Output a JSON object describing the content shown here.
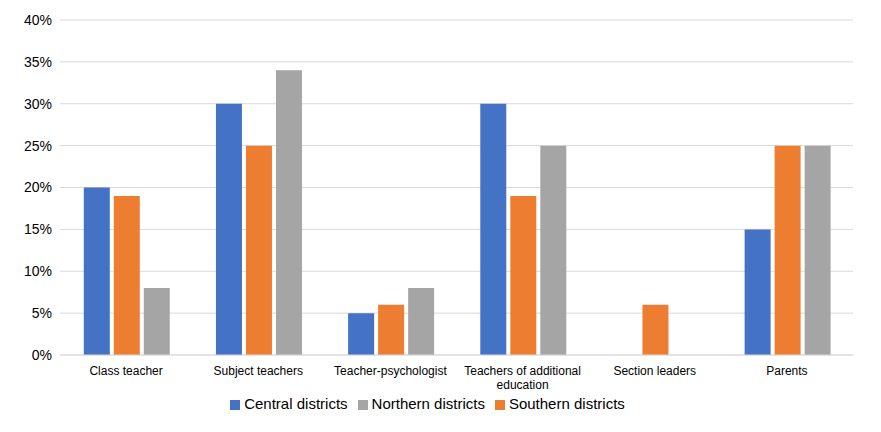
{
  "chart_data": {
    "type": "bar",
    "categories": [
      "Class teacher",
      "Subject teachers",
      "Teacher-psychologist",
      "Teachers of additional education",
      "Section leaders",
      "Parents"
    ],
    "series": [
      {
        "name": "Central districts",
        "color": "#4472c4",
        "values": [
          20,
          30,
          5,
          30,
          0,
          15
        ]
      },
      {
        "name": "Southern districts",
        "color": "#ed7d31",
        "values": [
          19,
          25,
          6,
          19,
          6,
          25
        ]
      },
      {
        "name": "Northern districts",
        "color": "#a5a5a5",
        "values": [
          8,
          34,
          8,
          25,
          0,
          25
        ]
      }
    ],
    "ylim": [
      0,
      40
    ],
    "yticks": [
      {
        "value": 0,
        "label": "0%"
      },
      {
        "value": 5,
        "label": "5%"
      },
      {
        "value": 10,
        "label": "10%"
      },
      {
        "value": 15,
        "label": "15%"
      },
      {
        "value": 20,
        "label": "20%"
      },
      {
        "value": 25,
        "label": "25%"
      },
      {
        "value": 30,
        "label": "30%"
      },
      {
        "value": 35,
        "label": "35%"
      },
      {
        "value": 40,
        "label": "40%"
      }
    ],
    "grid": true,
    "legend": "bottom"
  }
}
